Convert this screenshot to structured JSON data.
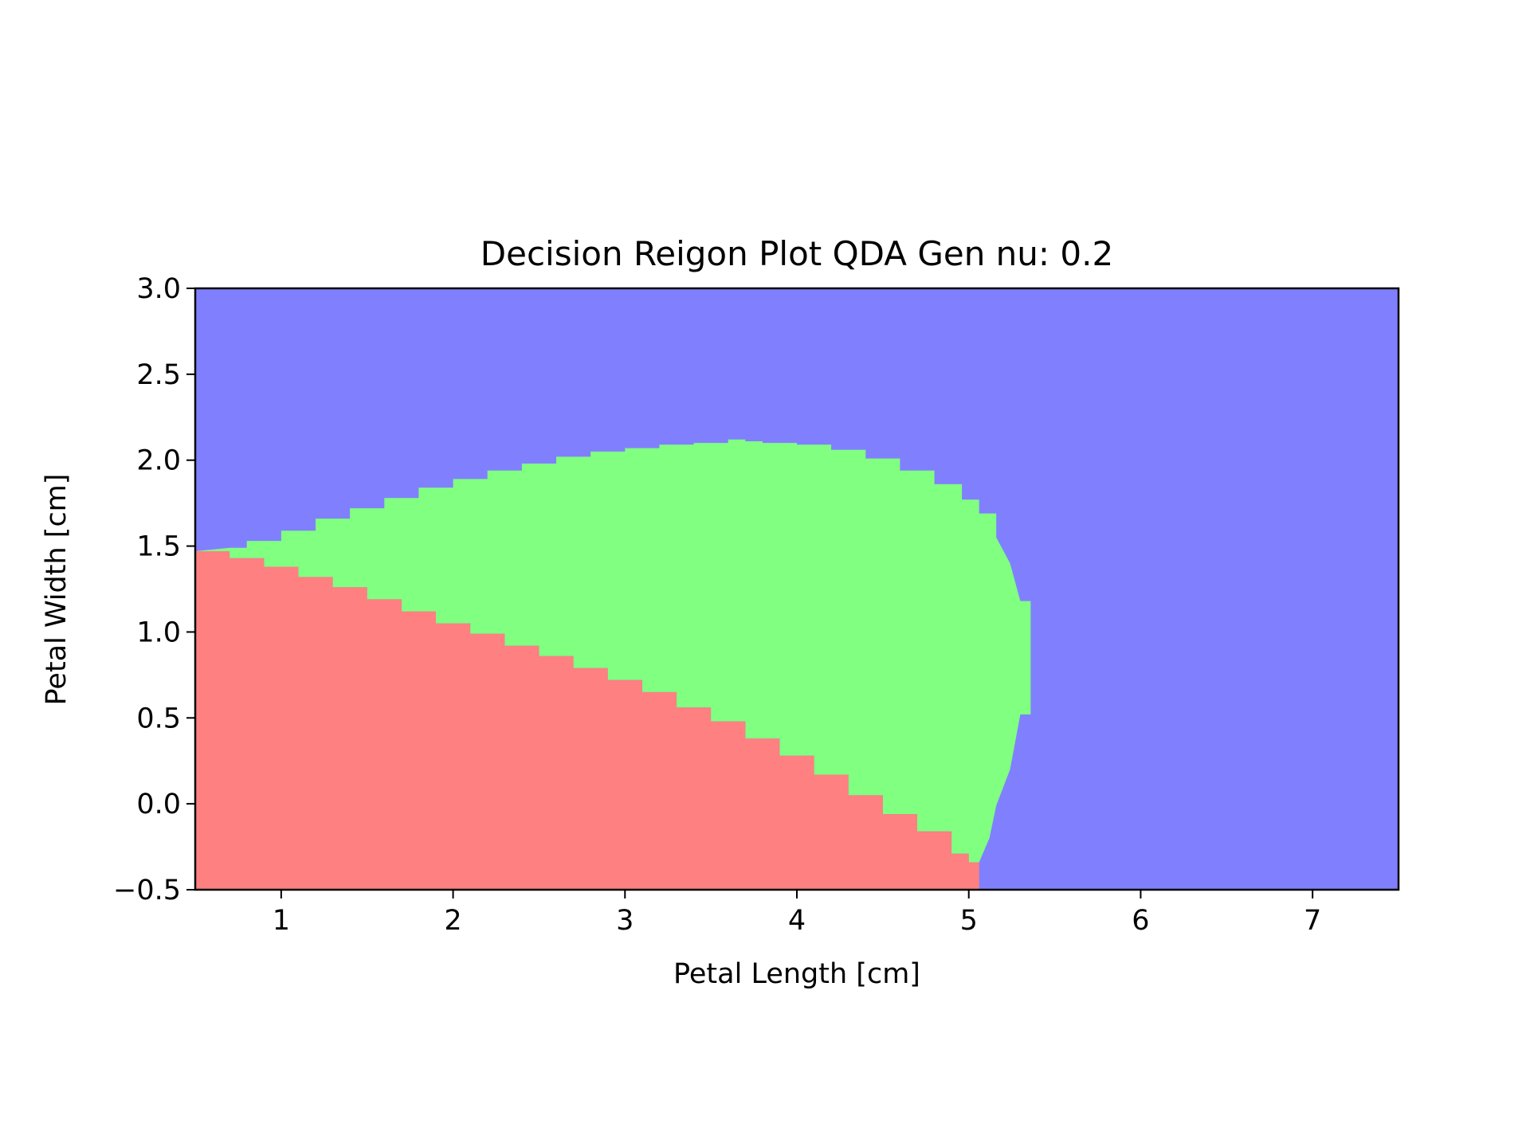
{
  "chart_data": {
    "type": "heatmap",
    "title": "Decision Reigon Plot QDA Gen nu: 0.2",
    "xlabel": "Petal Length [cm]",
    "ylabel": "Petal Width [cm]",
    "xlim": [
      0.5,
      7.5
    ],
    "ylim": [
      -0.5,
      3.0
    ],
    "x_ticks": [
      1,
      2,
      3,
      4,
      5,
      6,
      7
    ],
    "x_tick_labels": [
      "1",
      "2",
      "3",
      "4",
      "5",
      "6",
      "7"
    ],
    "y_ticks": [
      -0.5,
      0.0,
      0.5,
      1.0,
      1.5,
      2.0,
      2.5,
      3.0
    ],
    "y_tick_labels": [
      "−0.5",
      "0.0",
      "0.5",
      "1.0",
      "1.5",
      "2.0",
      "2.5",
      "3.0"
    ],
    "grid": false,
    "legend": "none",
    "region_colors": {
      "background": "#8080ff",
      "middle": "#80ff80",
      "lower": "#ff8080"
    },
    "regions": {
      "lower_boundary": {
        "x": [
          0.5,
          0.7,
          0.9,
          1.1,
          1.3,
          1.5,
          1.7,
          1.9,
          2.1,
          2.3,
          2.5,
          2.7,
          2.9,
          3.1,
          3.3,
          3.5,
          3.7,
          3.9,
          4.1,
          4.3,
          4.5,
          4.7,
          4.9,
          5.0,
          5.06
        ],
        "y": [
          1.47,
          1.43,
          1.38,
          1.32,
          1.26,
          1.19,
          1.12,
          1.05,
          0.99,
          0.92,
          0.86,
          0.79,
          0.72,
          0.65,
          0.56,
          0.48,
          0.38,
          0.28,
          0.17,
          0.05,
          -0.06,
          -0.16,
          -0.29,
          -0.34,
          -0.34
        ]
      },
      "middle_upper": {
        "x": [
          0.7,
          0.8,
          1.0,
          1.2,
          1.4,
          1.6,
          1.8,
          2.0,
          2.2,
          2.4,
          2.6,
          2.8,
          3.0,
          3.2,
          3.4,
          3.6,
          3.7,
          3.8,
          4.0,
          4.2,
          4.4,
          4.6,
          4.8,
          4.96,
          5.06,
          5.16
        ],
        "y": [
          1.49,
          1.53,
          1.59,
          1.66,
          1.72,
          1.78,
          1.84,
          1.89,
          1.94,
          1.98,
          2.02,
          2.05,
          2.07,
          2.09,
          2.1,
          2.12,
          2.11,
          2.1,
          2.09,
          2.06,
          2.01,
          1.94,
          1.86,
          1.77,
          1.69,
          1.55
        ]
      },
      "middle_right": {
        "x": [
          5.16,
          5.24,
          5.3,
          5.36,
          5.36,
          5.3,
          5.24,
          5.16,
          5.12,
          5.06
        ],
        "y": [
          1.55,
          1.4,
          1.18,
          1.18,
          0.52,
          0.52,
          0.2,
          -0.01,
          -0.2,
          -0.34
        ]
      }
    }
  }
}
